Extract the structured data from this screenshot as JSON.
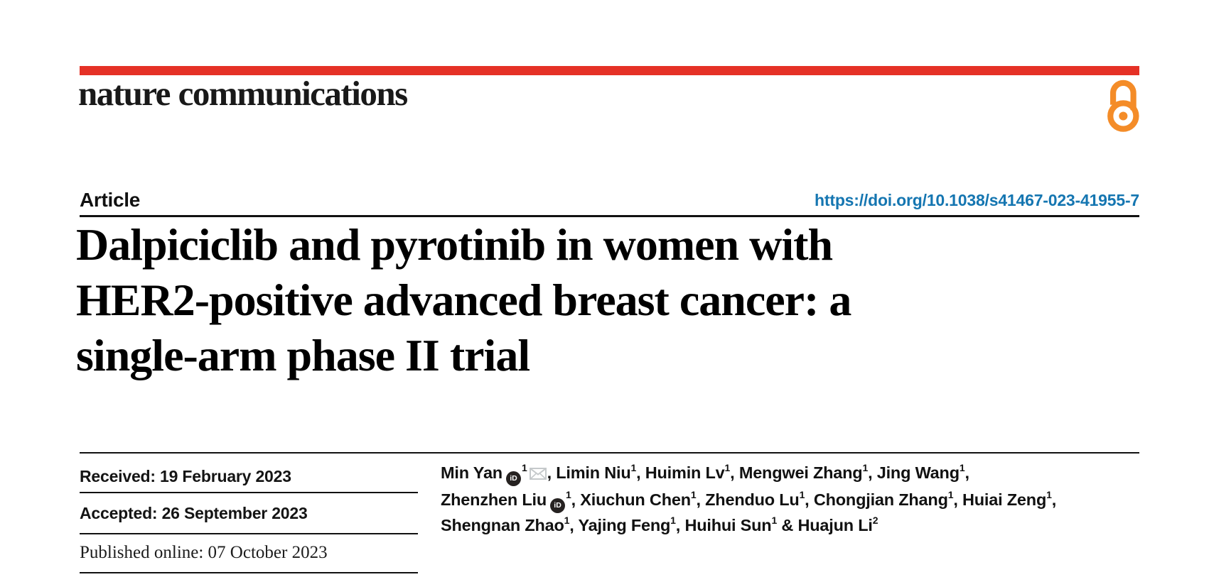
{
  "brand": {
    "journal_logo": "nature communications",
    "bar_color": "#e53126",
    "open_access_color": "#f48c28"
  },
  "header": {
    "article_label": "Article",
    "doi": "https://doi.org/10.1038/s41467-023-41955-7",
    "doi_color": "#1576b1"
  },
  "title": {
    "line1": "Dalpiciclib and pyrotinib in women with",
    "line2": "HER2-positive advanced breast cancer: a",
    "line3": "single-arm phase II trial"
  },
  "dates": {
    "received": "Received: 19 February 2023",
    "accepted": "Accepted: 26 September 2023",
    "published": "Published online: 07 October 2023"
  },
  "authors": {
    "orcid_label": "iD",
    "lines": [
      [
        {
          "name": "Min Yan",
          "orcid": true,
          "sup": "1",
          "envelope": true,
          "sep": ", "
        },
        {
          "name": "Limin Niu",
          "sup": "1",
          "sep": ", "
        },
        {
          "name": "Huimin Lv",
          "sup": "1",
          "sep": ", "
        },
        {
          "name": "Mengwei Zhang",
          "sup": "1",
          "sep": ", "
        },
        {
          "name": "Jing Wang",
          "sup": "1",
          "sep": ","
        }
      ],
      [
        {
          "name": "Zhenzhen Liu",
          "orcid": true,
          "sup": "1",
          "sep": ", "
        },
        {
          "name": "Xiuchun Chen",
          "sup": "1",
          "sep": ", "
        },
        {
          "name": "Zhenduo Lu",
          "sup": "1",
          "sep": ", "
        },
        {
          "name": "Chongjian Zhang",
          "sup": "1",
          "sep": ", "
        },
        {
          "name": "Huiai Zeng",
          "sup": "1",
          "sep": ","
        }
      ],
      [
        {
          "name": "Shengnan Zhao",
          "sup": "1",
          "sep": ", "
        },
        {
          "name": "Yajing Feng",
          "sup": "1",
          "sep": ", "
        },
        {
          "name": "Huihui Sun",
          "sup": "1",
          "sep": " & "
        },
        {
          "name": "Huajun Li",
          "sup": "2",
          "sep": ""
        }
      ]
    ]
  }
}
